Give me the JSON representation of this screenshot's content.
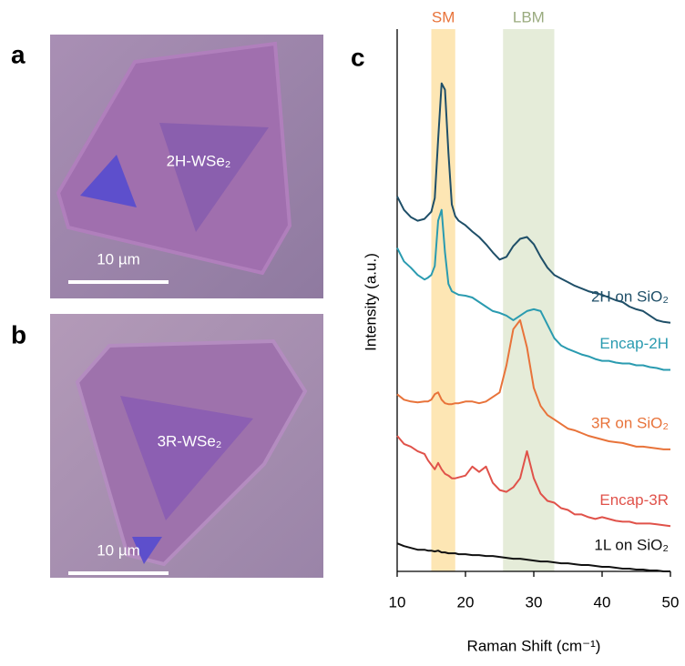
{
  "panels": [
    {
      "label": "a",
      "annotation": "2H-WSe₂",
      "scale_bar": "10 µm"
    },
    {
      "label": "b",
      "annotation": "3R-WSe₂",
      "scale_bar": "10 µm"
    }
  ],
  "chart_data": {
    "type": "line",
    "panel_label": "c",
    "xlabel": "Raman Shift (cm⁻¹)",
    "ylabel": "Intensity (a.u.)",
    "xlim": [
      10,
      50
    ],
    "xticks": [
      10,
      20,
      30,
      40,
      50
    ],
    "ylim": [
      0,
      600
    ],
    "bands": [
      {
        "label": "SM",
        "range": [
          15,
          18.5
        ],
        "color": "#fde6b4",
        "label_color": "#e8733a"
      },
      {
        "label": "LBM",
        "range": [
          25.5,
          33
        ],
        "color": "#e5ecd9",
        "label_color": "#9aab7f"
      }
    ],
    "x": [
      10,
      11,
      12,
      13,
      14,
      14.5,
      15,
      15.5,
      16,
      16.5,
      17,
      17.5,
      18,
      18.5,
      19,
      20,
      21,
      22,
      23,
      24,
      25,
      26,
      27,
      28,
      29,
      30,
      31,
      32,
      33,
      34,
      35,
      36,
      37,
      38,
      39,
      40,
      41,
      42,
      43,
      44,
      45,
      46,
      47,
      48,
      49,
      50
    ],
    "series": [
      {
        "name": "2H on SiO₂",
        "color": "#1f4f68",
        "values": [
          415,
          400,
          392,
          388,
          390,
          394,
          398,
          413,
          478,
          540,
          533,
          463,
          406,
          393,
          388,
          383,
          376,
          370,
          362,
          353,
          345,
          348,
          360,
          368,
          370,
          362,
          348,
          336,
          328,
          324,
          320,
          316,
          313,
          310,
          308,
          306,
          303,
          300,
          298,
          293,
          290,
          288,
          283,
          278,
          276,
          275
        ]
      },
      {
        "name": "Encap-2H",
        "color": "#2a9bb0",
        "values": [
          358,
          343,
          336,
          328,
          323,
          325,
          328,
          338,
          388,
          400,
          353,
          318,
          310,
          308,
          306,
          305,
          303,
          298,
          293,
          288,
          286,
          283,
          278,
          283,
          288,
          290,
          288,
          273,
          258,
          250,
          246,
          243,
          240,
          238,
          235,
          233,
          233,
          231,
          230,
          230,
          228,
          228,
          226,
          225,
          223,
          223
        ]
      },
      {
        "name": "3R on SiO₂",
        "color": "#e8733a",
        "values": [
          196,
          190,
          188,
          187,
          188,
          188,
          190,
          196,
          198,
          190,
          186,
          185,
          185,
          186,
          186,
          188,
          188,
          186,
          188,
          193,
          198,
          228,
          268,
          278,
          248,
          203,
          183,
          173,
          168,
          163,
          158,
          156,
          153,
          150,
          148,
          146,
          144,
          143,
          142,
          140,
          138,
          138,
          137,
          136,
          135,
          135
        ]
      },
      {
        "name": "Encap-3R",
        "color": "#e0524a",
        "values": [
          150,
          141,
          138,
          133,
          130,
          123,
          118,
          113,
          120,
          113,
          108,
          106,
          103,
          103,
          104,
          106,
          116,
          110,
          116,
          98,
          90,
          88,
          93,
          103,
          133,
          103,
          86,
          78,
          76,
          70,
          68,
          63,
          63,
          60,
          58,
          60,
          58,
          56,
          55,
          55,
          53,
          53,
          53,
          52,
          51,
          50
        ]
      },
      {
        "name": "1L on SiO₂",
        "color": "#111111",
        "values": [
          31,
          28,
          26,
          24,
          24,
          23,
          23,
          22,
          23,
          21,
          21,
          20,
          20,
          20,
          19,
          19,
          18,
          18,
          17,
          17,
          16,
          15,
          14,
          14,
          13,
          12,
          11,
          11,
          10,
          9,
          9,
          8,
          7,
          7,
          6,
          5,
          5,
          4,
          3,
          3,
          2,
          2,
          1,
          1,
          0,
          0
        ]
      }
    ]
  }
}
